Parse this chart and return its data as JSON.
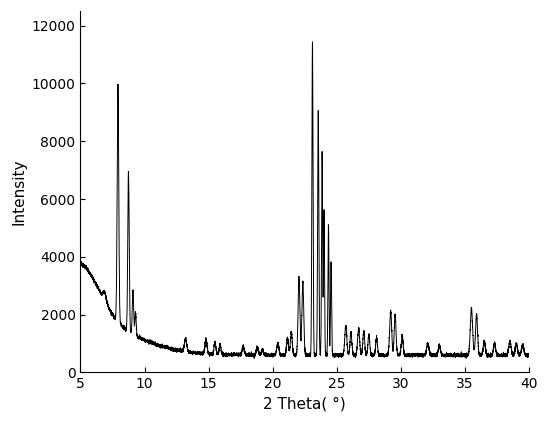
{
  "title": "",
  "xlabel": "2 Theta( °)",
  "ylabel": "Intensity",
  "xlim": [
    5,
    40
  ],
  "ylim": [
    0,
    12500
  ],
  "yticks": [
    0,
    2000,
    4000,
    6000,
    8000,
    10000,
    12000
  ],
  "xticks": [
    5,
    10,
    15,
    20,
    25,
    30,
    35,
    40
  ],
  "line_color": "#000000",
  "line_width": 0.7,
  "background_color": "#ffffff",
  "figsize": [
    5.49,
    4.23
  ],
  "dpi": 100
}
